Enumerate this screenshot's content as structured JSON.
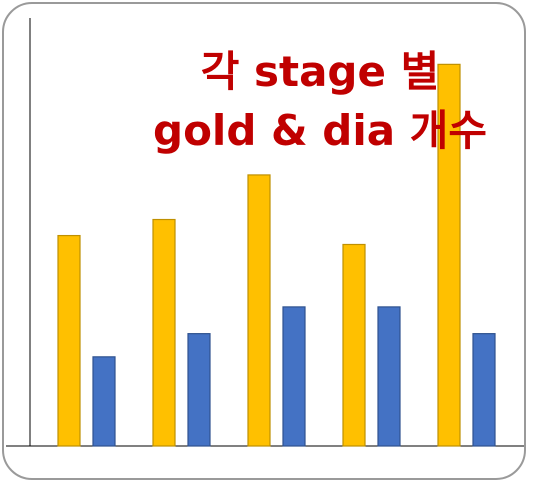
{
  "chart_data": {
    "type": "bar",
    "title_lines": [
      "각 stage 별",
      "gold & dia 개수"
    ],
    "categories": [
      "",
      "",
      "",
      "",
      ""
    ],
    "series": [
      {
        "values": [
          5.9,
          6.35,
          7.6,
          5.65,
          10.7
        ],
        "color": "#FFC000"
      },
      {
        "values": [
          2.5,
          3.15,
          3.9,
          3.9,
          3.15
        ],
        "color": "#4472C4"
      }
    ],
    "ylim": [
      0,
      12
    ],
    "grid": false,
    "legend": "none",
    "xlabel": "",
    "ylabel": ""
  }
}
